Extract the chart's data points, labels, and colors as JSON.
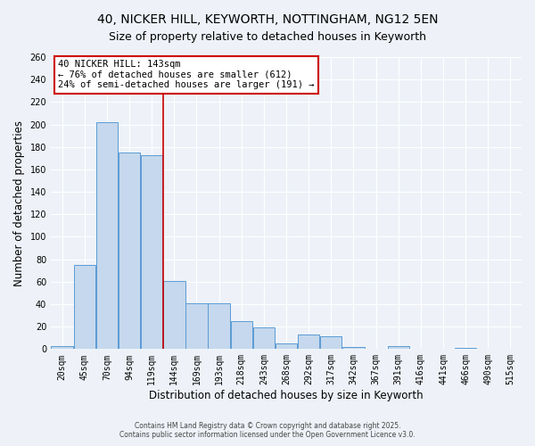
{
  "title1": "40, NICKER HILL, KEYWORTH, NOTTINGHAM, NG12 5EN",
  "title2": "Size of property relative to detached houses in Keyworth",
  "xlabel": "Distribution of detached houses by size in Keyworth",
  "ylabel": "Number of detached properties",
  "bar_labels": [
    "20sqm",
    "45sqm",
    "70sqm",
    "94sqm",
    "119sqm",
    "144sqm",
    "169sqm",
    "193sqm",
    "218sqm",
    "243sqm",
    "268sqm",
    "292sqm",
    "317sqm",
    "342sqm",
    "367sqm",
    "391sqm",
    "416sqm",
    "441sqm",
    "466sqm",
    "490sqm",
    "515sqm"
  ],
  "bar_values": [
    3,
    75,
    202,
    175,
    173,
    61,
    41,
    41,
    25,
    19,
    5,
    13,
    11,
    2,
    0,
    3,
    0,
    0,
    1,
    0,
    0
  ],
  "bar_color": "#c5d8ed",
  "bar_edge_color": "#5b9bd5",
  "vline_x": 5.0,
  "vline_color": "#cc0000",
  "annotation_title": "40 NICKER HILL: 143sqm",
  "annotation_line1": "← 76% of detached houses are smaller (612)",
  "annotation_line2": "24% of semi-detached houses are larger (191) →",
  "annotation_box_color": "#cc0000",
  "ylim": [
    0,
    260
  ],
  "yticks": [
    0,
    20,
    40,
    60,
    80,
    100,
    120,
    140,
    160,
    180,
    200,
    220,
    240,
    260
  ],
  "footer1": "Contains HM Land Registry data © Crown copyright and database right 2025.",
  "footer2": "Contains public sector information licensed under the Open Government Licence v3.0.",
  "bg_color": "#eef2f8",
  "grid_color": "#ffffff",
  "title_fontsize": 10,
  "subtitle_fontsize": 9,
  "axis_label_fontsize": 8.5,
  "tick_fontsize": 7,
  "annotation_fontsize": 7.5
}
